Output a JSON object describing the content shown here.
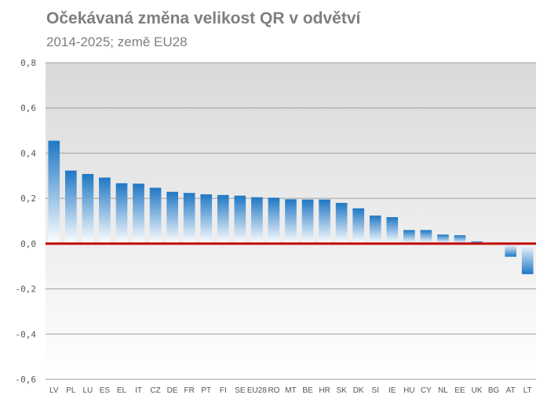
{
  "chart_data": {
    "type": "bar",
    "title": "Očekávaná změna velikost QR v odvětví",
    "subtitle": "2014-2025; země EU28",
    "xlabel": "",
    "ylabel": "",
    "ylim": [
      -0.6,
      0.8
    ],
    "yticks": [
      "0,8",
      "0,6",
      "0,4",
      "0,2",
      "0,0",
      "-0,2",
      "-0,4",
      "-0,6"
    ],
    "ytick_values": [
      0.8,
      0.6,
      0.4,
      0.2,
      0.0,
      -0.2,
      -0.4,
      -0.6
    ],
    "grid": true,
    "legend": "none",
    "categories": [
      "LV",
      "PL",
      "LU",
      "ES",
      "EL",
      "IT",
      "CZ",
      "DE",
      "FR",
      "PT",
      "FI",
      "SE",
      "EU28",
      "RO",
      "MT",
      "BE",
      "HR",
      "SK",
      "DK",
      "SI",
      "IE",
      "HU",
      "CY",
      "NL",
      "EE",
      "UK",
      "BG",
      "AT",
      "LT"
    ],
    "values": [
      0.455,
      0.323,
      0.308,
      0.292,
      0.267,
      0.265,
      0.247,
      0.229,
      0.224,
      0.218,
      0.215,
      0.212,
      0.205,
      0.203,
      0.196,
      0.195,
      0.195,
      0.18,
      0.156,
      0.124,
      0.117,
      0.06,
      0.06,
      0.04,
      0.037,
      0.01,
      0.0,
      -0.058,
      -0.135
    ],
    "colors": {
      "bar_top": "#1f77c4",
      "bar_bottom": "#ffffff",
      "zero_line": "#c00000",
      "grid": "#a0a0a0",
      "plot_bg_top": "#d9d9d9",
      "plot_bg_bottom": "#ffffff"
    }
  }
}
